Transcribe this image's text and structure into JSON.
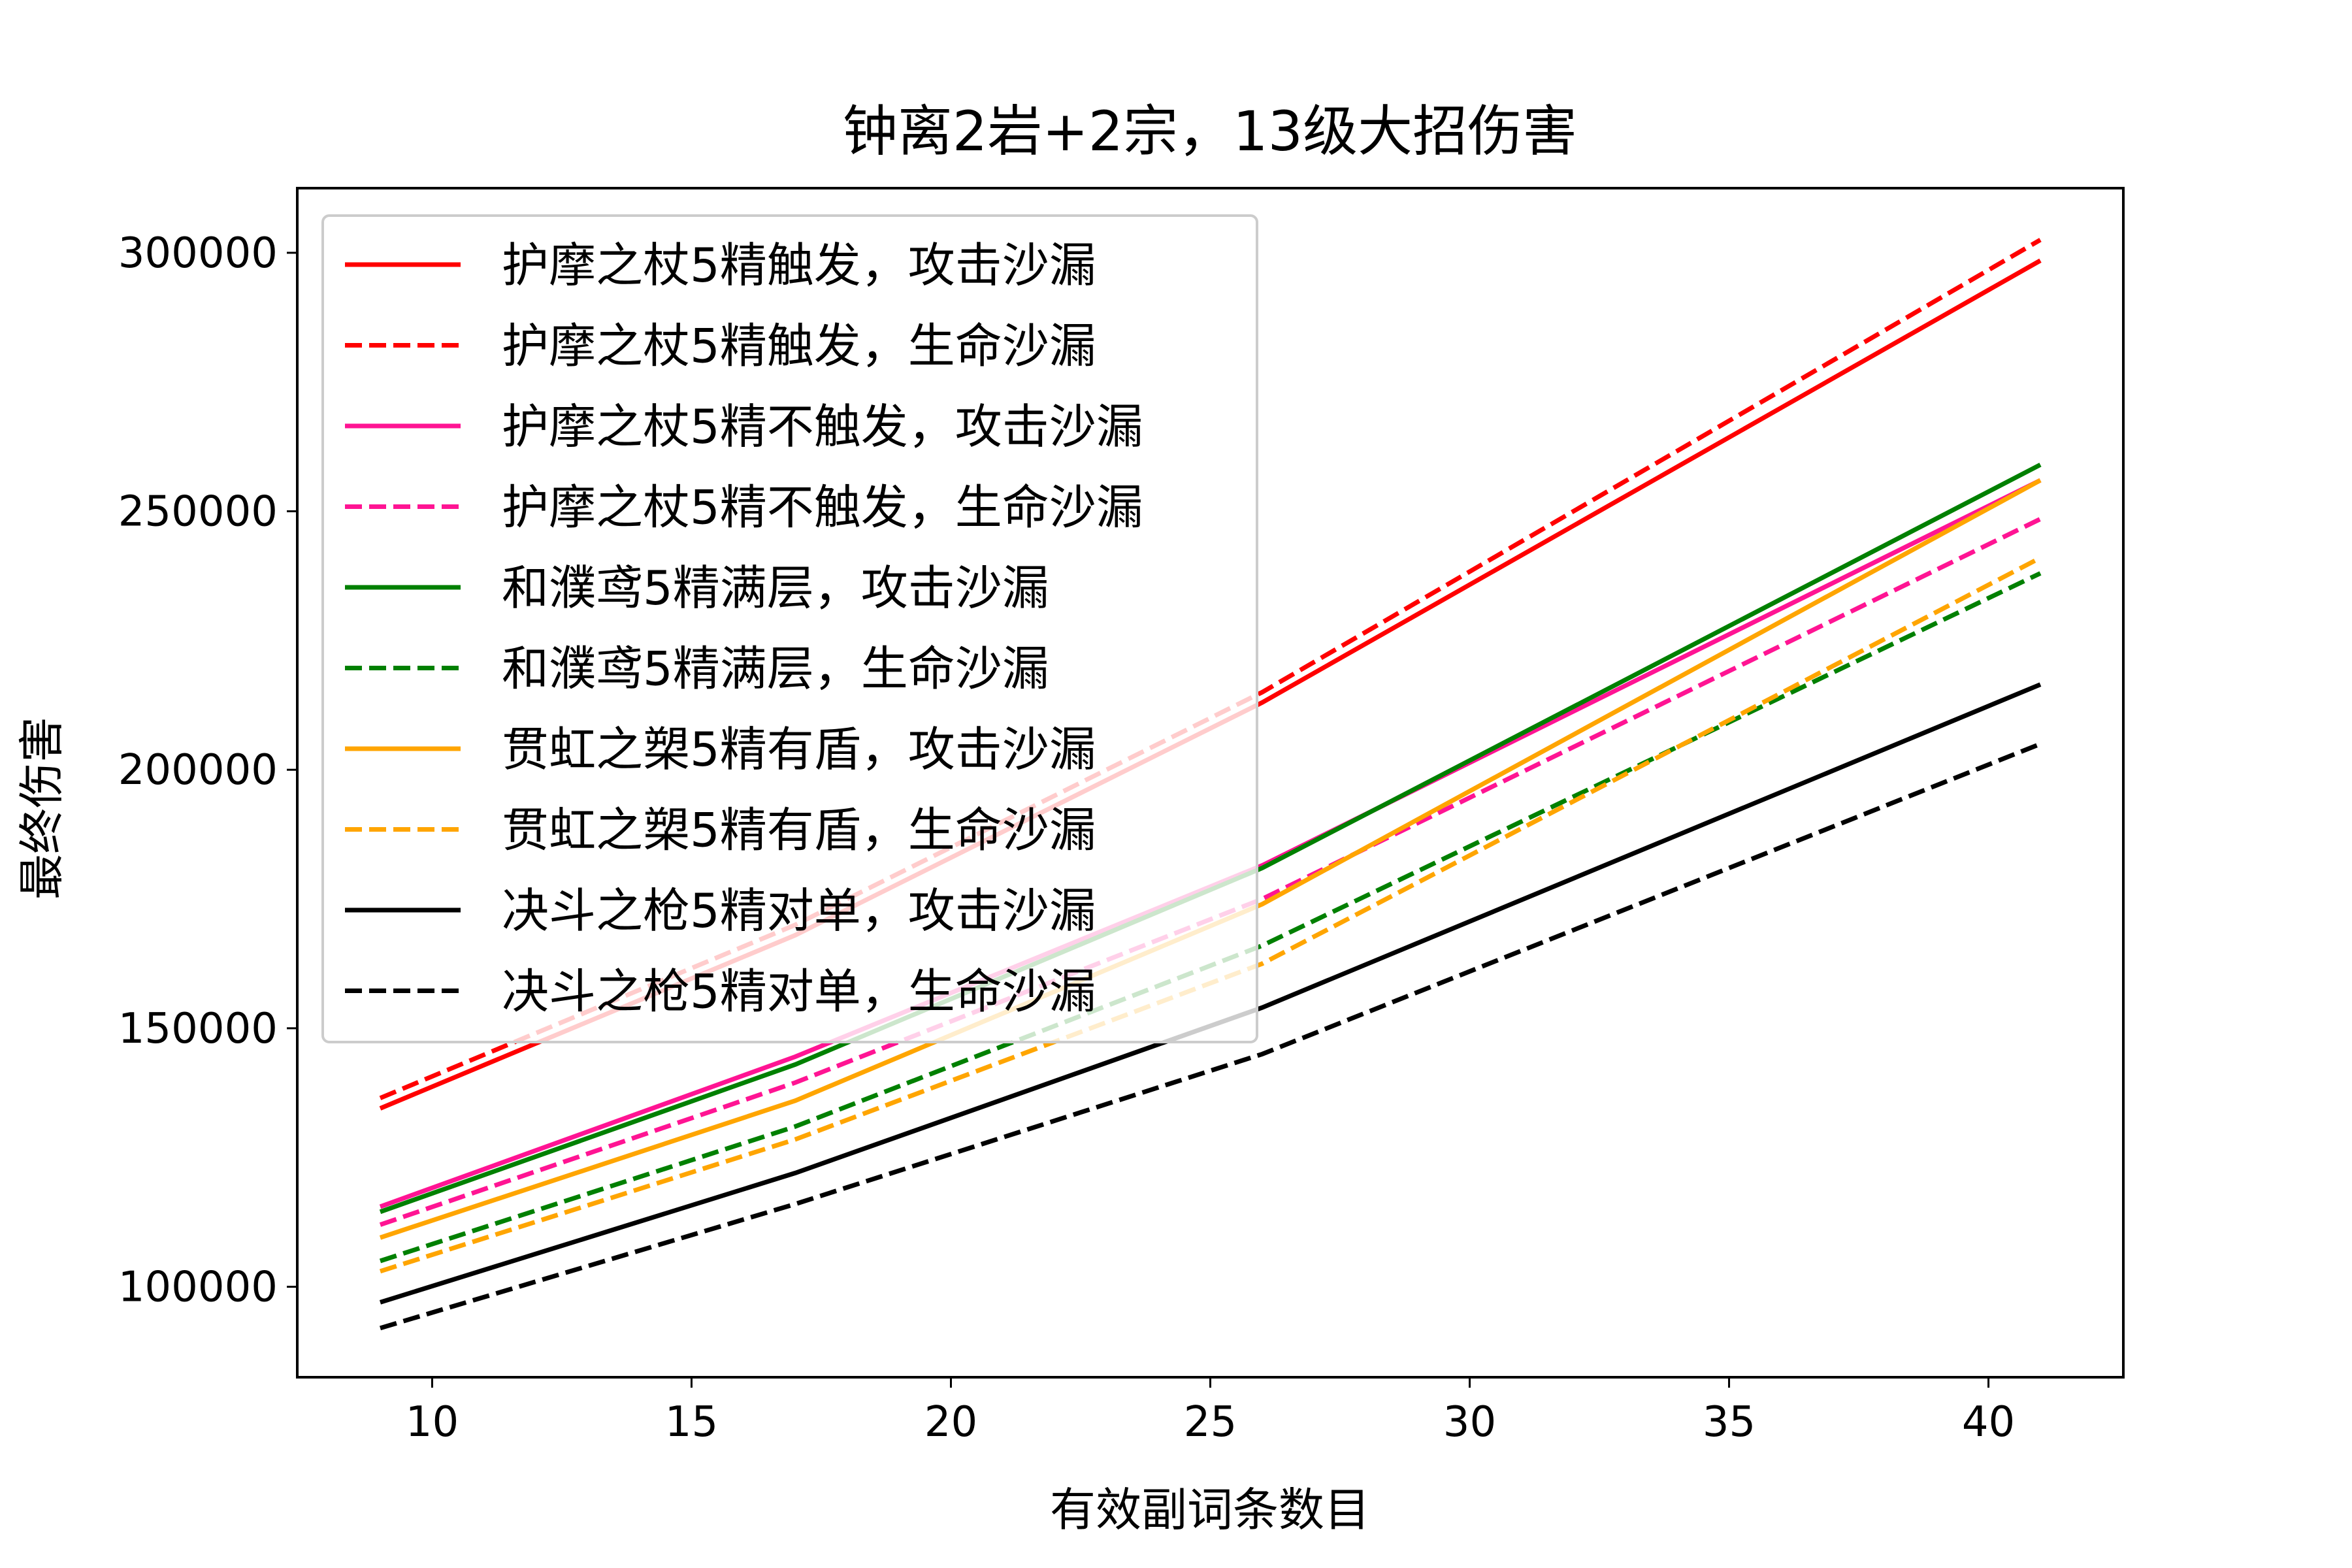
{
  "chart_data": {
    "type": "line",
    "title": "钟离2岩+2宗，13级大招伤害",
    "xlabel": "有效副词条数目",
    "ylabel": "最终伤害",
    "xlim": [
      7.4,
      42.6
    ],
    "ylim": [
      82500,
      312500
    ],
    "xticks": [
      10,
      15,
      20,
      25,
      30,
      35,
      40
    ],
    "yticks": [
      100000,
      150000,
      200000,
      250000,
      300000
    ],
    "grid": false,
    "legend_position": "top-left",
    "x": [
      9,
      17,
      26,
      41
    ],
    "series": [
      {
        "name": "护摩之杖5精触发，攻击沙漏",
        "color": "#ff0000",
        "dash": "solid",
        "values": [
          134500,
          168000,
          213000,
          298500
        ]
      },
      {
        "name": "护摩之杖5精触发，生命沙漏",
        "color": "#ff0000",
        "dash": "dashed",
        "values": [
          136500,
          170000,
          215000,
          302500
        ]
      },
      {
        "name": "护摩之杖5精不触发，攻击沙漏",
        "color": "#ff1493",
        "dash": "solid",
        "values": [
          115500,
          144500,
          181500,
          256000
        ]
      },
      {
        "name": "护摩之杖5精不触发，生命沙漏",
        "color": "#ff1493",
        "dash": "dashed",
        "values": [
          112000,
          139500,
          175000,
          248500
        ]
      },
      {
        "name": "和濮鸢5精满层，攻击沙漏",
        "color": "#008000",
        "dash": "solid",
        "values": [
          114500,
          143000,
          181000,
          259000
        ]
      },
      {
        "name": "和濮鸢5精满层，生命沙漏",
        "color": "#008000",
        "dash": "dashed",
        "values": [
          105000,
          131000,
          166000,
          238000
        ]
      },
      {
        "name": "贯虹之槊5精有盾，攻击沙漏",
        "color": "#ffa500",
        "dash": "solid",
        "values": [
          109500,
          136000,
          174000,
          256000
        ]
      },
      {
        "name": "贯虹之槊5精有盾，生命沙漏",
        "color": "#ffa500",
        "dash": "dashed",
        "values": [
          103000,
          128500,
          162500,
          241000
        ]
      },
      {
        "name": "决斗之枪5精对单，攻击沙漏",
        "color": "#000000",
        "dash": "solid",
        "values": [
          97000,
          122000,
          154000,
          216500
        ]
      },
      {
        "name": "决斗之枪5精对单，生命沙漏",
        "color": "#000000",
        "dash": "dashed",
        "values": [
          92000,
          116000,
          145000,
          205000
        ]
      }
    ]
  }
}
